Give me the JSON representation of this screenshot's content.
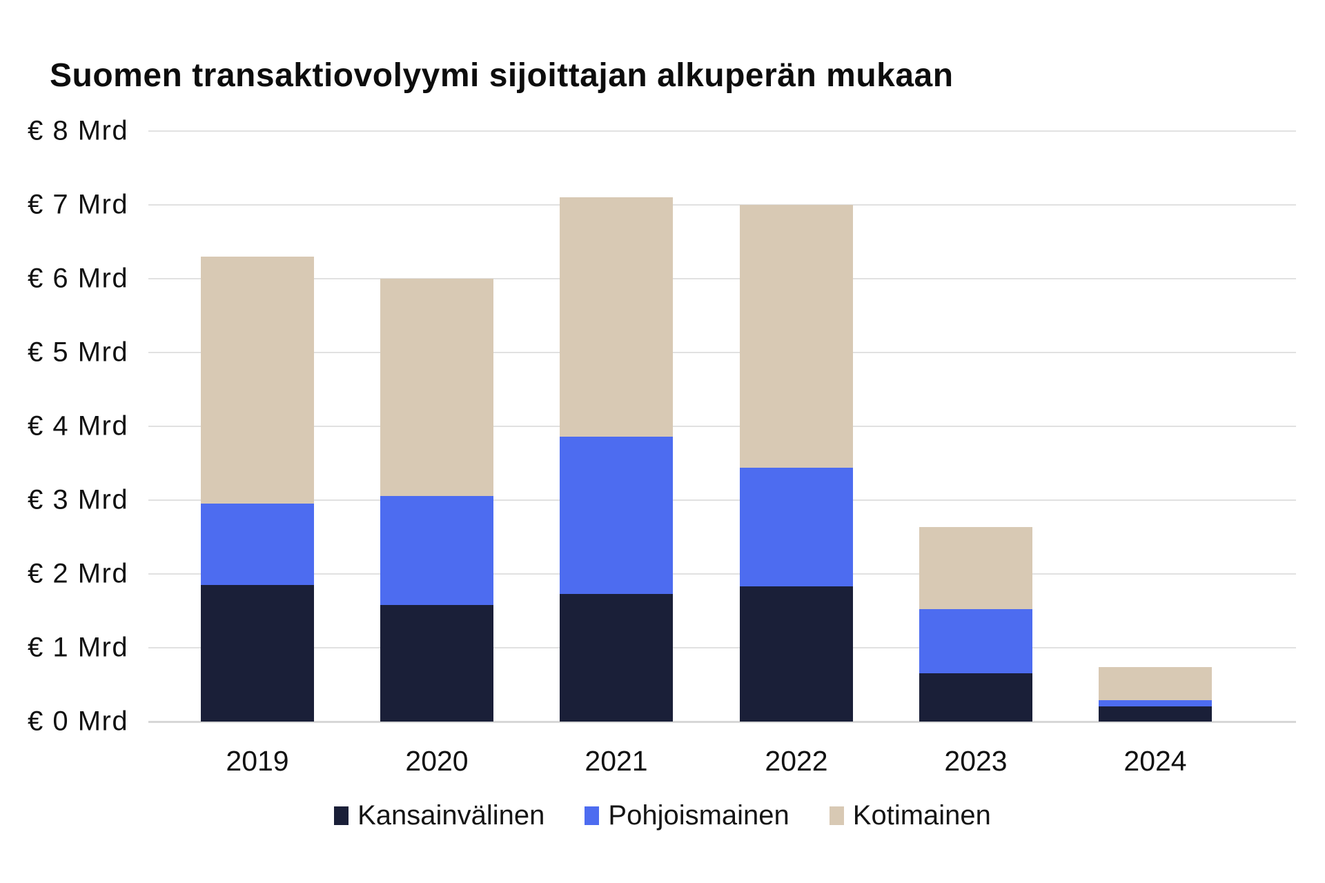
{
  "page": {
    "background": "#ffffff"
  },
  "chart_data": {
    "type": "bar",
    "stacked": true,
    "title": "Suomen transaktiovolyymi sijoittajan alkuperän mukaan",
    "categories": [
      "2019",
      "2020",
      "2021",
      "2022",
      "2023",
      "2024"
    ],
    "series": [
      {
        "name": "Kansainvälinen",
        "color": "#1a1f38",
        "values": [
          1.85,
          1.58,
          1.73,
          1.83,
          0.65,
          0.21
        ]
      },
      {
        "name": "Pohjoismainen",
        "color": "#4d6cf0",
        "values": [
          1.1,
          1.48,
          2.13,
          1.61,
          0.87,
          0.08
        ]
      },
      {
        "name": "Kotimainen",
        "color": "#d8c9b4",
        "values": [
          3.35,
          2.94,
          3.24,
          3.56,
          1.12,
          0.45
        ]
      }
    ],
    "totals": [
      6.3,
      6.0,
      7.1,
      7.0,
      2.64,
      0.74
    ],
    "unit": "€ Mrd",
    "ylim": [
      0,
      8
    ],
    "ytick_step": 1,
    "yticks": [
      "€ 8 Mrd",
      "€ 7 Mrd",
      "€ 6 Mrd",
      "€ 5 Mrd",
      "€ 4 Mrd",
      "€ 3 Mrd",
      "€ 2 Mrd",
      "€ 1 Mrd",
      "€ 0 Mrd"
    ],
    "xlabel": "",
    "ylabel": "",
    "grid": true,
    "gridline_color": "#e1e1e1",
    "text_color": "#111111",
    "legend_position": "bottom"
  }
}
